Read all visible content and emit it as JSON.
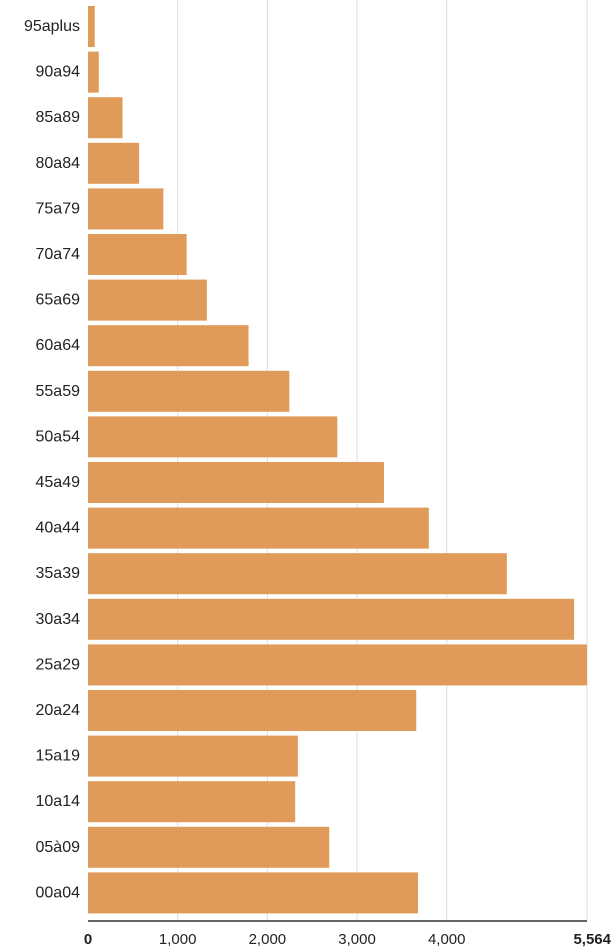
{
  "chart_data": {
    "type": "bar",
    "orientation": "horizontal",
    "categories": [
      "95aplus",
      "90a94",
      "85a89",
      "80a84",
      "75a79",
      "70a74",
      "65a69",
      "60a64",
      "55a59",
      "50a54",
      "45a49",
      "40a44",
      "35a39",
      "30a34",
      "25a29",
      "20a24",
      "15a19",
      "10a14",
      "05à09",
      "00a04"
    ],
    "values": [
      75,
      120,
      385,
      570,
      840,
      1100,
      1325,
      1790,
      2245,
      2780,
      3300,
      3800,
      4670,
      5420,
      5564,
      3660,
      2340,
      2310,
      2690,
      3680
    ],
    "xlim": [
      0,
      5564
    ],
    "xticks": [
      {
        "value": 0,
        "label": "0",
        "bold": true
      },
      {
        "value": 1000,
        "label": "1,000",
        "bold": false
      },
      {
        "value": 2000,
        "label": "2,000",
        "bold": false
      },
      {
        "value": 3000,
        "label": "3,000",
        "bold": false
      },
      {
        "value": 4000,
        "label": "4,000",
        "bold": false
      },
      {
        "value": 5564,
        "label": "5,564",
        "bold": true
      }
    ],
    "grid": true,
    "bar_color": "#e09a59",
    "grid_color": "#dddddd",
    "axis_color": "#333333"
  }
}
